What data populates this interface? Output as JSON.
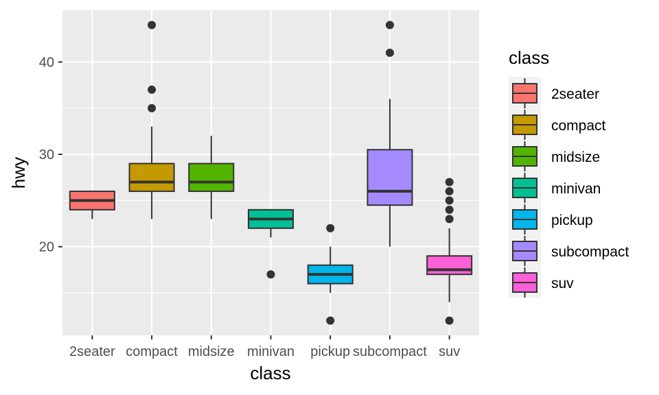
{
  "chart_data": {
    "type": "boxplot",
    "xlabel": "class",
    "ylabel": "hwy",
    "ylim": [
      10.4,
      45.6
    ],
    "yticks": [
      20,
      30,
      40
    ],
    "yminor": [
      15,
      25,
      35
    ],
    "grid": true,
    "legend": {
      "title": "class",
      "position": "right"
    },
    "categories": [
      "2seater",
      "compact",
      "midsize",
      "minivan",
      "pickup",
      "subcompact",
      "suv"
    ],
    "colors": [
      "#F8766D",
      "#C49A00",
      "#53B400",
      "#00C094",
      "#00B6EB",
      "#A58AFF",
      "#FB61D7"
    ],
    "boxes": [
      {
        "class": "2seater",
        "whisker_low": 23,
        "q1": 24,
        "median": 25,
        "q3": 26,
        "whisker_high": 26,
        "outliers": []
      },
      {
        "class": "compact",
        "whisker_low": 23,
        "q1": 26,
        "median": 27,
        "q3": 29,
        "whisker_high": 33,
        "outliers": [
          35,
          37,
          44
        ]
      },
      {
        "class": "midsize",
        "whisker_low": 23,
        "q1": 26,
        "median": 27,
        "q3": 29,
        "whisker_high": 32,
        "outliers": []
      },
      {
        "class": "minivan",
        "whisker_low": 21,
        "q1": 22,
        "median": 23,
        "q3": 24,
        "whisker_high": 24,
        "outliers": [
          17
        ]
      },
      {
        "class": "pickup",
        "whisker_low": 15,
        "q1": 16,
        "median": 17,
        "q3": 18,
        "whisker_high": 20,
        "outliers": [
          12,
          22
        ]
      },
      {
        "class": "subcompact",
        "whisker_low": 20,
        "q1": 24.5,
        "median": 26,
        "q3": 30.5,
        "whisker_high": 36,
        "outliers": [
          41,
          44
        ]
      },
      {
        "class": "suv",
        "whisker_low": 14,
        "q1": 17,
        "median": 17.5,
        "q3": 19,
        "whisker_high": 22,
        "outliers": [
          12,
          23,
          24,
          25,
          26,
          27
        ]
      }
    ]
  }
}
